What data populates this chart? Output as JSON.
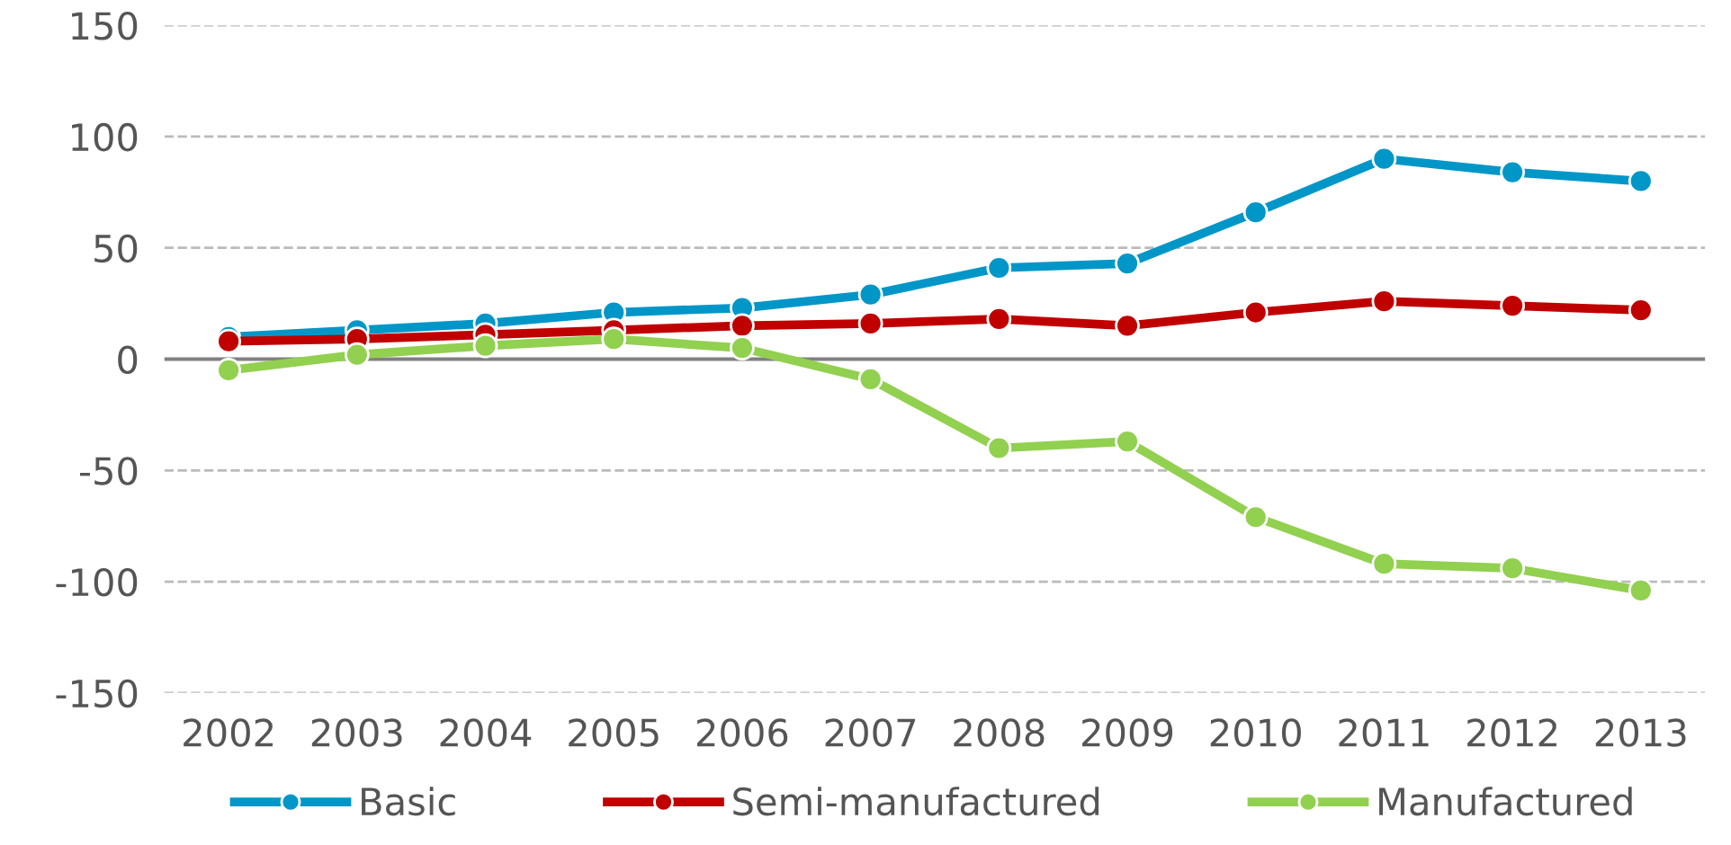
{
  "chart_data": {
    "type": "line",
    "categories": [
      "2002",
      "2003",
      "2004",
      "2005",
      "2006",
      "2007",
      "2008",
      "2009",
      "2010",
      "2011",
      "2012",
      "2013"
    ],
    "series": [
      {
        "name": "Basic",
        "color": "#0096c8",
        "values": [
          10,
          13,
          16,
          21,
          23,
          29,
          41,
          43,
          66,
          90,
          84,
          80
        ]
      },
      {
        "name": "Semi-manufactured",
        "color": "#c00000",
        "values": [
          8,
          9,
          11,
          13,
          15,
          16,
          18,
          15,
          21,
          26,
          24,
          22
        ]
      },
      {
        "name": "Manufactured",
        "color": "#92d050",
        "values": [
          -5,
          2,
          6,
          9,
          5,
          -9,
          -40,
          -37,
          -71,
          -92,
          -94,
          -104
        ]
      }
    ],
    "ylim": [
      -150,
      150
    ],
    "yticks": [
      -150,
      -100,
      -50,
      0,
      50,
      100,
      150
    ],
    "ref_lines": [
      {
        "axis": "y",
        "value": 0,
        "color": "#808080",
        "line_style": "solid"
      }
    ],
    "grid": "y",
    "legend": "bottom",
    "marker": "circle",
    "line_style": "solid"
  }
}
